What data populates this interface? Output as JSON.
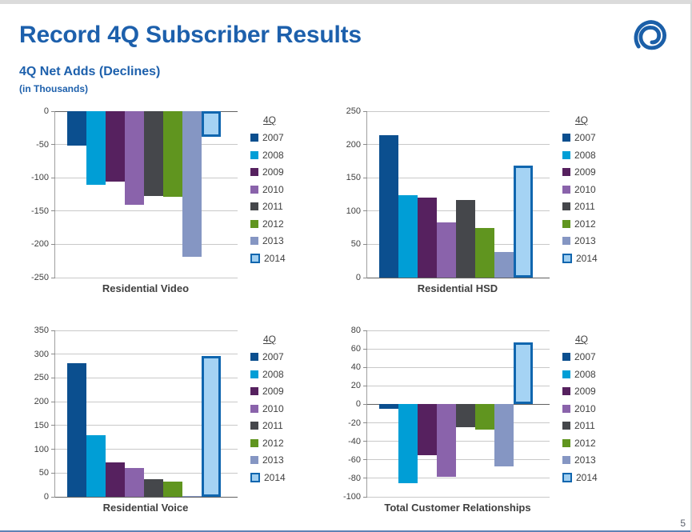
{
  "header": {
    "title": "Record 4Q Subscriber Results",
    "subtitle": "4Q Net Adds (Declines)",
    "subtitle2": "(in Thousands)",
    "title_color": "#1d60ac",
    "logo": "time-warner-cable-eye-logo",
    "logo_color": "#1b5fa8"
  },
  "footer": {
    "page_number": "5"
  },
  "legend": {
    "header": "4Q",
    "years": [
      "2007",
      "2008",
      "2009",
      "2010",
      "2011",
      "2012",
      "2013",
      "2014"
    ],
    "colors": [
      "#0b4f8f",
      "#009ed6",
      "#56215f",
      "#8a63ab",
      "#45474b",
      "#60951f",
      "#8596c3",
      "highlight"
    ],
    "highlight_fill": "#a5d3f4",
    "highlight_border": "#1066af",
    "position": "right"
  },
  "chart_data": [
    {
      "type": "bar",
      "title": "Residential Video",
      "categories": [
        "2007",
        "2008",
        "2009",
        "2010",
        "2011",
        "2012",
        "2013",
        "2014"
      ],
      "values": [
        -52,
        -110,
        -106,
        -141,
        -128,
        -129,
        -219,
        -39
      ],
      "ylim": [
        -250,
        0
      ],
      "ystep": 50,
      "xlabel": "Residential Video",
      "ylabel": "",
      "grid": true,
      "legend_position": "right"
    },
    {
      "type": "bar",
      "title": "Residential HSD",
      "categories": [
        "2007",
        "2008",
        "2009",
        "2010",
        "2011",
        "2012",
        "2013",
        "2014"
      ],
      "values": [
        214,
        124,
        120,
        83,
        117,
        75,
        39,
        168
      ],
      "ylim": [
        0,
        250
      ],
      "ystep": 50,
      "xlabel": "Residential HSD",
      "ylabel": "",
      "grid": true,
      "legend_position": "right"
    },
    {
      "type": "bar",
      "title": "Residential Voice",
      "categories": [
        "2007",
        "2008",
        "2009",
        "2010",
        "2011",
        "2012",
        "2013",
        "2014"
      ],
      "values": [
        281,
        129,
        73,
        61,
        37,
        32,
        1,
        296
      ],
      "ylim": [
        0,
        350
      ],
      "ystep": 50,
      "xlabel": "Residential Voice",
      "ylabel": "",
      "grid": true,
      "legend_position": "right"
    },
    {
      "type": "bar",
      "title": "Total Customer Relationships",
      "categories": [
        "2007",
        "2008",
        "2009",
        "2010",
        "2011",
        "2012",
        "2013",
        "2014"
      ],
      "values": [
        -5,
        -85,
        -55,
        -78,
        -25,
        -27,
        -67,
        67
      ],
      "ylim": [
        -100,
        80
      ],
      "ystep": 20,
      "xlabel": "Total Customer Relationships",
      "ylabel": "",
      "grid": true,
      "legend_position": "right"
    }
  ]
}
